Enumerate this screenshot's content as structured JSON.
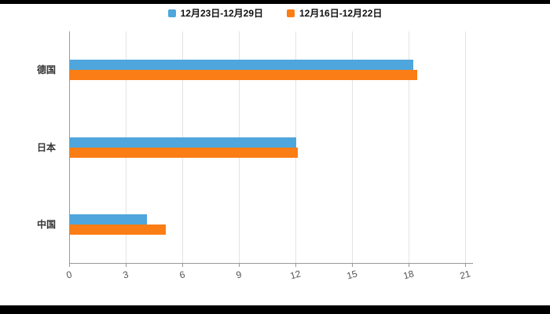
{
  "chart_data": {
    "type": "bar",
    "orientation": "horizontal",
    "title": "",
    "categories": [
      "德国",
      "日本",
      "中国"
    ],
    "series": [
      {
        "name": "12月23日-12月29日",
        "color": "#4FA6DC",
        "values": [
          18.2,
          12.0,
          4.1
        ]
      },
      {
        "name": "12月16日-12月22日",
        "color": "#FB7D15",
        "values": [
          18.4,
          12.1,
          5.1
        ]
      }
    ],
    "xlim": [
      0,
      21
    ],
    "xticks": [
      0,
      3,
      6,
      9,
      12,
      15,
      18,
      21
    ],
    "grid": true,
    "legend_position": "top",
    "plot_background": "#ffffff"
  }
}
